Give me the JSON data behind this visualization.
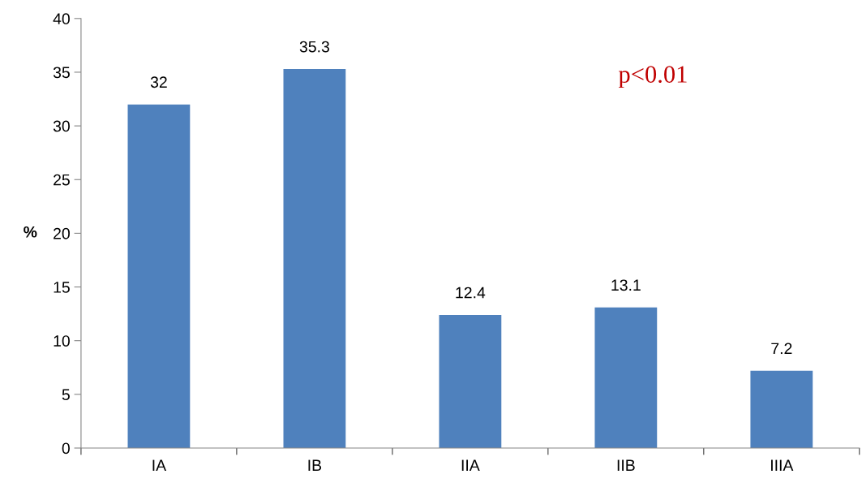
{
  "chart_data": {
    "type": "bar",
    "ylabel": "%",
    "categories": [
      "IA",
      "IB",
      "IIA",
      "IIB",
      "IIIA"
    ],
    "values": [
      32,
      35.3,
      12.4,
      13.1,
      7.2
    ],
    "color": "#4f81bd",
    "ylim": [
      0,
      40
    ],
    "yticks": [
      0,
      5,
      10,
      15,
      20,
      25,
      30,
      35,
      40
    ],
    "data_labels": true,
    "grid": false,
    "legend": false,
    "annotations": [
      "p<0.01"
    ]
  }
}
